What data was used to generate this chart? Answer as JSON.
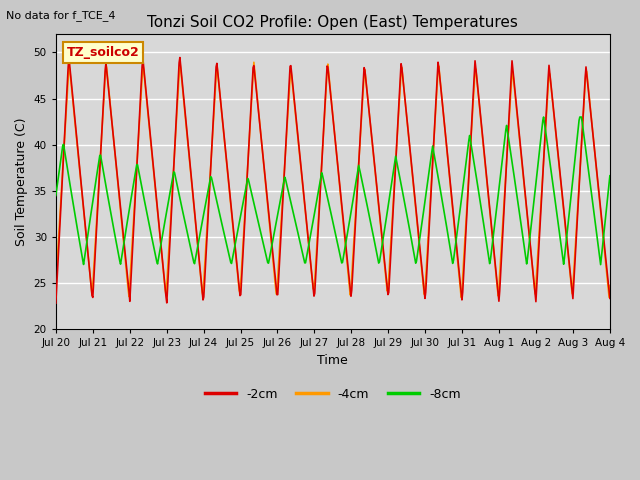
{
  "title": "Tonzi Soil CO2 Profile: Open (East) Temperatures",
  "no_data_text": "No data for f_TCE_4",
  "legend_label_text": "TZ_soilco2",
  "ylabel": "Soil Temperature (C)",
  "xlabel": "Time",
  "ylim": [
    20,
    52
  ],
  "yticks": [
    20,
    25,
    30,
    35,
    40,
    45,
    50
  ],
  "fig_bg_color": "#c8c8c8",
  "axes_bg_color": "#d8d8d8",
  "series": [
    {
      "label": "-2cm",
      "color": "#dd0000"
    },
    {
      "label": "-4cm",
      "color": "#ff9900"
    },
    {
      "label": "-8cm",
      "color": "#00cc00"
    }
  ],
  "x_tick_labels": [
    "Jul 20",
    "Jul 21",
    "Jul 22",
    "Jul 23",
    "Jul 24",
    "Jul 25",
    "Jul 26",
    "Jul 27",
    "Jul 28",
    "Jul 29",
    "Jul 30",
    "Jul 31",
    "Aug 1",
    "Aug 2",
    "Aug 3",
    "Aug 4"
  ],
  "num_days": 15,
  "points_per_day": 48
}
